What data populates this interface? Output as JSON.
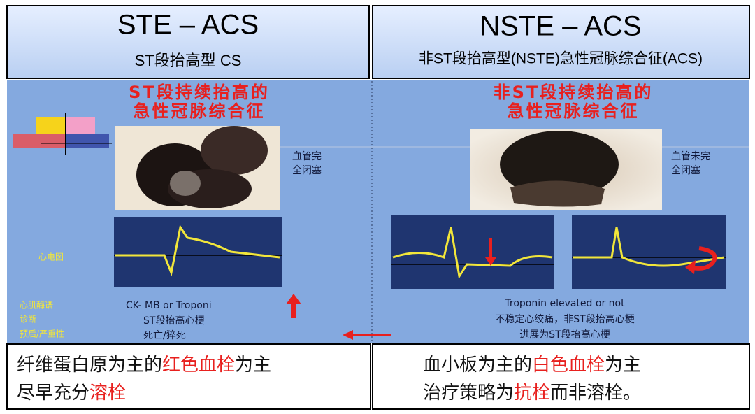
{
  "left": {
    "title": "STE – ACS",
    "subtitle": "ST段抬高型 CS",
    "heading": [
      "ST段持续抬高的",
      "急性冠脉综合征"
    ],
    "occlusion": [
      "血管完",
      "全闭塞"
    ],
    "ecg_label": "心电图",
    "side_labels": [
      "心肌酶谱",
      "诊断",
      "预后/严重性"
    ],
    "markers": [
      "CK-  MB or Troponi",
      "ST段抬高心梗",
      "死亡/猝死"
    ],
    "summary": [
      [
        {
          "text": "纤维蛋白原为主的"
        },
        {
          "text": "红色血栓",
          "highlight": true
        },
        {
          "text": "为主"
        }
      ],
      [
        {
          "text": "尽早充分"
        },
        {
          "text": "溶栓",
          "highlight": true
        }
      ]
    ]
  },
  "right": {
    "title": "NSTE – ACS",
    "subtitle": "非ST段抬高型(NSTE)急性冠脉综合征(ACS)",
    "heading": [
      "非ST段持续抬高的",
      "急性冠脉综合征"
    ],
    "occlusion": [
      "血管未完",
      "全闭塞"
    ],
    "markers": [
      "Troponin elevated or not",
      "不稳定心绞痛，非ST段抬高心梗",
      "进展为ST段抬高心梗"
    ],
    "summary": [
      [
        {
          "text": "血小板为主的"
        },
        {
          "text": "白色血栓",
          "highlight": true
        },
        {
          "text": "为主"
        }
      ],
      [
        {
          "text": "治疗策略为"
        },
        {
          "text": "抗栓",
          "highlight": true
        },
        {
          "text": "而非溶栓。"
        }
      ]
    ]
  }
}
